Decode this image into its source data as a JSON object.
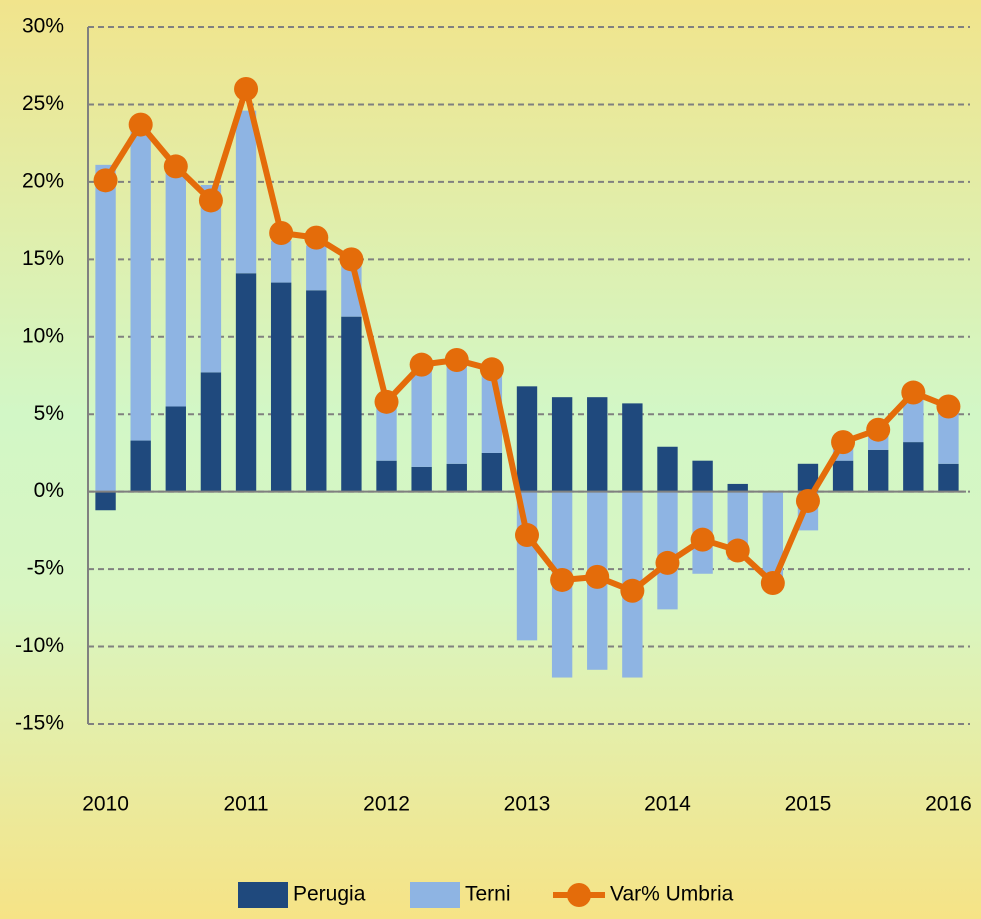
{
  "chart_data": {
    "type": "bar_line",
    "categories": [
      "2010",
      null,
      null,
      null,
      "2011",
      null,
      null,
      null,
      "2012",
      null,
      null,
      null,
      "2013",
      null,
      null,
      null,
      "2014",
      null,
      null,
      null,
      "2015",
      null,
      null,
      null,
      "2016"
    ],
    "series": [
      {
        "name": "Perugia",
        "type": "bar",
        "color": "#1f497d",
        "values": [
          -1.2,
          3.3,
          5.5,
          7.7,
          14.1,
          13.5,
          13.0,
          11.3,
          2.0,
          1.6,
          1.8,
          2.5,
          6.8,
          6.1,
          6.1,
          5.7,
          2.9,
          2.0,
          0.5,
          0,
          1.8,
          2.0,
          2.7,
          3.2,
          1.8
        ]
      },
      {
        "name": "Terni",
        "type": "bar",
        "color": "#8eb4e3",
        "values": [
          21.1,
          20.0,
          15.9,
          12.1,
          10.5,
          2.7,
          2.9,
          3.3,
          3.9,
          6.8,
          6.9,
          5.5,
          -9.6,
          -12.0,
          -11.5,
          -12.0,
          -7.6,
          -5.3,
          -4.4,
          -6.2,
          -2.5,
          1.1,
          1.3,
          3.2,
          3.8
        ]
      },
      {
        "name": "Var% Umbria",
        "type": "line",
        "color": "#e46c0a",
        "values": [
          20.1,
          23.7,
          21.0,
          18.8,
          26.0,
          16.7,
          16.4,
          15.0,
          5.8,
          8.2,
          8.5,
          7.9,
          -2.8,
          -5.7,
          -5.5,
          -6.4,
          -4.6,
          -3.1,
          -3.8,
          -5.9,
          -0.6,
          3.2,
          4.0,
          6.4,
          5.5
        ]
      }
    ],
    "ylim": [
      -15,
      30
    ],
    "yticks": [
      {
        "value": -15,
        "label": "-15%"
      },
      {
        "value": -10,
        "label": "-10%"
      },
      {
        "value": -5,
        "label": "-5%"
      },
      {
        "value": 0,
        "label": "0%"
      },
      {
        "value": 5,
        "label": "5%"
      },
      {
        "value": 10,
        "label": "10%"
      },
      {
        "value": 15,
        "label": "15%"
      },
      {
        "value": 20,
        "label": "20%"
      },
      {
        "value": 25,
        "label": "25%"
      },
      {
        "value": 30,
        "label": "30%"
      }
    ],
    "grid": true,
    "legend": "bottom"
  }
}
